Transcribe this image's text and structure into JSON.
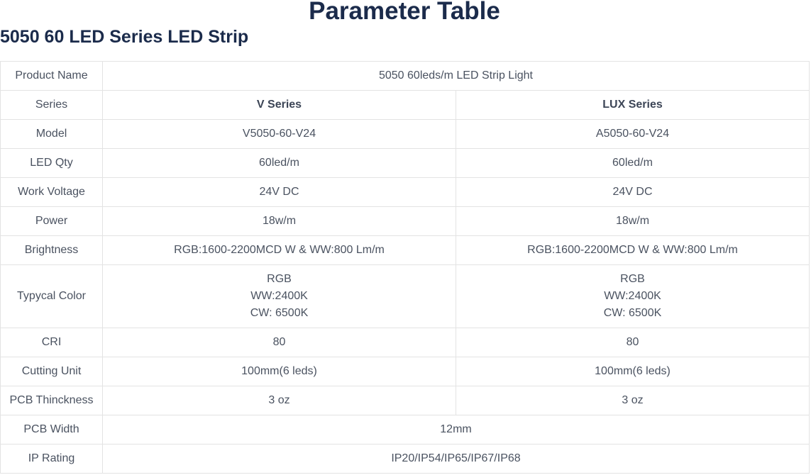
{
  "title": "Parameter Table",
  "subtitle": "5050 60 LED Series LED Strip",
  "colors": {
    "heading": "#1b2b4b",
    "text": "#4a5260",
    "border": "#e3e3e3"
  },
  "rows": [
    {
      "label": "Product Name",
      "merged": "5050 60leds/m LED Strip Light"
    },
    {
      "label": "Series",
      "v": "V Series",
      "lux": "LUX Series",
      "bold": true
    },
    {
      "label": "Model",
      "v": "V5050-60-V24",
      "lux": "A5050-60-V24"
    },
    {
      "label": "LED Qty",
      "v": "60led/m",
      "lux": "60led/m"
    },
    {
      "label": "Work Voltage",
      "v": "24V DC",
      "lux": "24V DC"
    },
    {
      "label": "Power",
      "v": "18w/m",
      "lux": "18w/m"
    },
    {
      "label": "Brightness",
      "v": "RGB:1600-2200MCD W & WW:800 Lm/m",
      "lux": "RGB:1600-2200MCD W & WW:800 Lm/m"
    },
    {
      "label": "Typycal Color",
      "v_lines": [
        "RGB",
        "WW:2400K",
        "CW: 6500K"
      ],
      "lux_lines": [
        "RGB",
        "WW:2400K",
        "CW: 6500K"
      ]
    },
    {
      "label": "CRI",
      "v": "80",
      "lux": "80"
    },
    {
      "label": "Cutting Unit",
      "v": "100mm(6 leds)",
      "lux": "100mm(6 leds)"
    },
    {
      "label": "PCB Thinckness",
      "v": "3 oz",
      "lux": "3 oz"
    },
    {
      "label": "PCB Width",
      "merged": "12mm"
    },
    {
      "label": "IP Rating",
      "merged": "IP20/IP54/IP65/IP67/IP68"
    }
  ]
}
